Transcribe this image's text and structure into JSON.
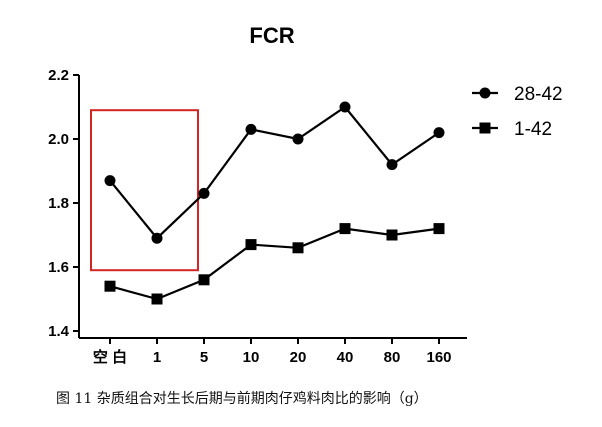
{
  "caption": "图 11 杂质组合对生长后期与前期肉仔鸡料肉比的影响（g）",
  "chart_data": {
    "type": "line",
    "title": "FCR",
    "categories": [
      "空 白",
      "1",
      "5",
      "10",
      "20",
      "40",
      "80",
      "160"
    ],
    "series": [
      {
        "name": "28-42",
        "marker": "circle",
        "values": [
          1.87,
          1.69,
          1.83,
          2.03,
          2.0,
          2.1,
          1.92,
          2.02
        ]
      },
      {
        "name": "1-42",
        "marker": "square",
        "values": [
          1.54,
          1.5,
          1.56,
          1.67,
          1.66,
          1.72,
          1.7,
          1.72
        ]
      }
    ],
    "ylim": [
      1.4,
      2.2
    ],
    "yticks": [
      "1.4",
      "1.6",
      "1.8",
      "2.0",
      "2.2"
    ],
    "xlabel": "",
    "ylabel": "",
    "legend_position": "right",
    "highlight": {
      "from_category": 0,
      "to_category": 1,
      "y_from": 1.59,
      "y_to": 2.09,
      "color": "#d42424"
    },
    "colors": {
      "line": "#000000"
    }
  }
}
